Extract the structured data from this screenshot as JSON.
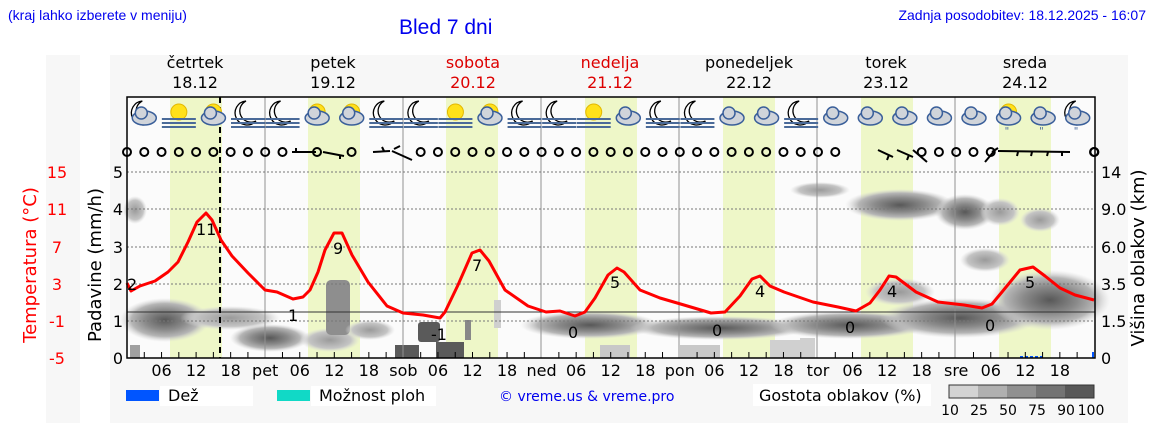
{
  "header": {
    "location_hint": "(kraj lahko izberete v meniju)",
    "title": "Bled 7 dni",
    "last_update": "Zadnja posodobitev: 18.12.2025 - 16:07"
  },
  "days": [
    {
      "name": "četrtek",
      "date": "18.12",
      "weekend": false,
      "short": ""
    },
    {
      "name": "petek",
      "date": "19.12",
      "weekend": false,
      "short": "pet"
    },
    {
      "name": "sobota",
      "date": "20.12",
      "weekend": true,
      "short": "sob"
    },
    {
      "name": "nedelja",
      "date": "21.12",
      "weekend": true,
      "short": "ned"
    },
    {
      "name": "ponedeljek",
      "date": "22.12",
      "weekend": false,
      "short": "pon"
    },
    {
      "name": "torek",
      "date": "23.12",
      "weekend": false,
      "short": "tor"
    },
    {
      "name": "sreda",
      "date": "24.12",
      "weekend": false,
      "short": "sre"
    }
  ],
  "axes": {
    "left_temp_label": "Temperatura (°C)",
    "left_temp_ticks": [
      "15",
      "11",
      "7",
      "3",
      "-1",
      "-5"
    ],
    "left_precip_label": "Padavine (mm/h)",
    "left_precip_ticks": [
      "5",
      "4",
      "3",
      "2",
      "1",
      "0"
    ],
    "right_label": "Višina oblakov (km)",
    "right_ticks": [
      "14",
      "9.0",
      "6.0",
      "3.5",
      "1.5",
      "0"
    ],
    "x_hour_ticks": [
      "06",
      "12",
      "18"
    ]
  },
  "legend": {
    "rain_label": "Dež",
    "rain_color": "#0055ff",
    "showers_label": "Možnost ploh",
    "showers_color": "#11d9c6",
    "copyright": "© vreme.us & vreme.pro",
    "cloud_density_label": "Gostota oblakov (%)",
    "cloud_density_ticks": [
      "10",
      "25",
      "50",
      "75",
      "90",
      "100"
    ],
    "cloud_density_colors": [
      "#d3d3d3",
      "#b0b0b0",
      "#909090",
      "#737373",
      "#585858"
    ]
  },
  "colors": {
    "temperature_line": "#ff0000",
    "daylight_band": "#eef7c8",
    "title_blue": "#0000ee",
    "weekend_red": "#dd0000"
  },
  "chart_data": {
    "type": "line",
    "title": "Bled 7 dni",
    "xlabel": "",
    "ylabel": "Temperatura (°C) / Padavine (mm/h)",
    "y2label": "Višina oblakov (km)",
    "x_range": [
      "18.12 00:00",
      "24.12 24:00"
    ],
    "temp_ylim": [
      -5,
      15
    ],
    "precip_ylim": [
      0,
      5
    ],
    "grid": true,
    "now_marker": "18.12 16:00",
    "series": [
      {
        "name": "Temperatura (°C)",
        "x_hours": [
          0,
          3,
          6,
          9,
          12,
          14,
          16,
          18,
          21,
          24,
          27,
          30,
          33,
          36,
          39,
          42,
          45,
          48,
          51,
          54,
          57,
          60,
          63,
          66,
          69,
          72,
          75,
          78,
          81,
          84,
          87,
          90,
          93,
          96,
          99,
          102,
          105,
          108,
          111,
          114,
          117,
          120,
          123,
          126,
          129,
          132,
          135,
          138,
          141,
          144,
          147,
          150,
          153,
          156,
          159,
          162,
          165,
          168
        ],
        "values": [
          2.0,
          2.6,
          3.2,
          5.2,
          9.0,
          11.0,
          9.5,
          6.8,
          4.5,
          2.0,
          1.2,
          1.4,
          4.8,
          9.0,
          7.0,
          3.6,
          1.4,
          0.0,
          -0.4,
          -0.6,
          0.8,
          6.2,
          6.6,
          2.8,
          1.2,
          0.2,
          0.2,
          -0.4,
          1.8,
          5.0,
          4.6,
          1.8,
          1.0,
          0.4,
          -0.4,
          0.0,
          2.2,
          4.2,
          3.2,
          1.4,
          0.8,
          -0.2,
          -0.2,
          0.6,
          3.6,
          4.0,
          2.2,
          1.4,
          0.8,
          0.2,
          0.3,
          0.0,
          1.8,
          4.8,
          5.2,
          3.4,
          2.6,
          2.2
        ]
      },
      {
        "name": "Dnevni ekstremi (°C)",
        "labels": [
          {
            "day": "18.12",
            "min": 2,
            "max": 11
          },
          {
            "day": "19.12",
            "min": 1,
            "max": 9
          },
          {
            "day": "20.12",
            "min": -1,
            "max": 7
          },
          {
            "day": "21.12",
            "min": 0,
            "max": 5
          },
          {
            "day": "22.12",
            "min": 0,
            "max": 4
          },
          {
            "day": "23.12",
            "min": 0,
            "max": 4
          },
          {
            "day": "24.12",
            "min": 0,
            "max": 5
          }
        ]
      },
      {
        "name": "Padavine (mm/h)",
        "values_note": "practically 0 throughout; tiny rain traces on 24.12 around 10-14h",
        "values": [
          0,
          0,
          0,
          0,
          0,
          0,
          0,
          0.05
        ]
      }
    ],
    "weather_icons": [
      "moon-cloud",
      "sun-fog",
      "sun-cloud",
      "moon-fog",
      "moon-fog",
      "sun-cloud",
      "sun-cloud",
      "moon-fog",
      "moon-fog",
      "sun-fog",
      "sun-small-cloud",
      "moon-fog",
      "moon-fog",
      "sun-fog",
      "cloud",
      "moon-fog",
      "moon-fog",
      "cloud",
      "cloud",
      "moon-fog",
      "cloud",
      "cloud",
      "cloud",
      "cloud",
      "cloud",
      "sun-cloud-drizzle",
      "cloud-drizzle",
      "moon-cloud-drizzle"
    ],
    "wind": "mostly calm (circles); light wind barbs on 19.12 afternoon, 20.12 night, 23.12 midday, 24.12"
  }
}
